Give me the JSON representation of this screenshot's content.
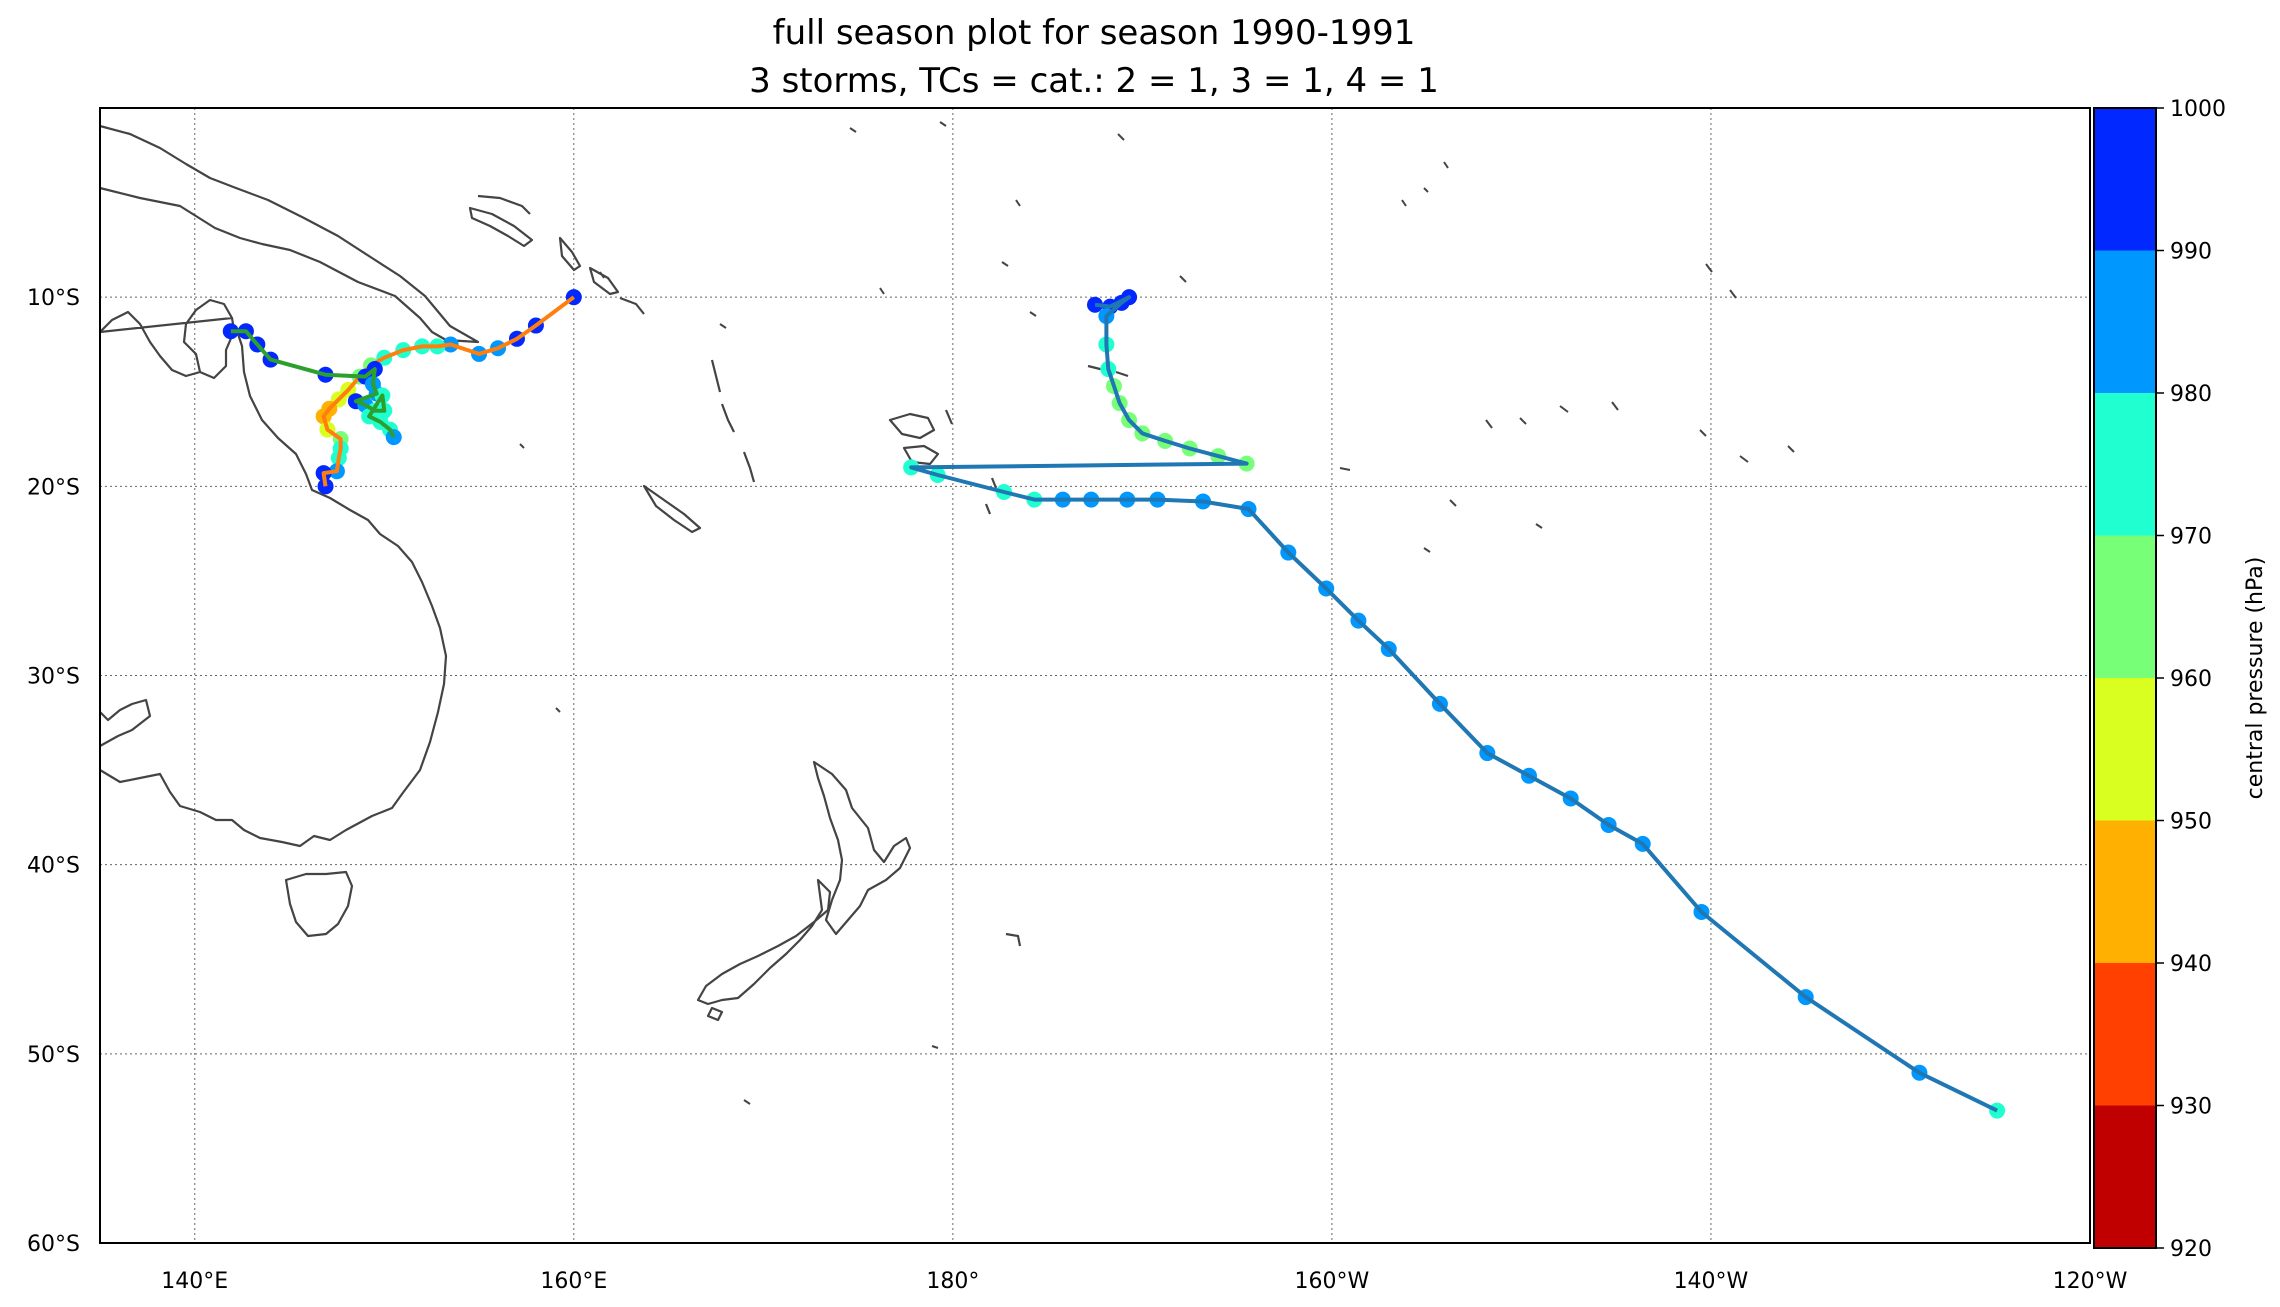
{
  "title_line1": "full season plot for season 1990-1991",
  "title_line2": "3 storms, TCs = cat.: 2 = 1, 3 = 1, 4 = 1",
  "map": {
    "lon_range": [
      135,
      240
    ],
    "lat_range": [
      -60,
      0
    ],
    "lon_ticks": [
      {
        "lon": 140,
        "label": "140°E"
      },
      {
        "lon": 160,
        "label": "160°E"
      },
      {
        "lon": 180,
        "label": "180°"
      },
      {
        "lon": 200,
        "label": "160°W"
      },
      {
        "lon": 220,
        "label": "140°W"
      },
      {
        "lon": 240,
        "label": "120°W"
      }
    ],
    "lat_ticks": [
      {
        "lat": -10,
        "label": "10°S"
      },
      {
        "lat": -20,
        "label": "20°S"
      },
      {
        "lat": -30,
        "label": "30°S"
      },
      {
        "lat": -40,
        "label": "40°S"
      },
      {
        "lat": -50,
        "label": "50°S"
      },
      {
        "lat": -60,
        "label": "60°S"
      }
    ],
    "gridlines": true
  },
  "colorbar": {
    "label": "central pressure (hPa)",
    "levels": [
      920,
      930,
      940,
      950,
      960,
      970,
      980,
      990,
      1000
    ],
    "colors": [
      "#c00000",
      "#ff4000",
      "#ffb000",
      "#d8ff20",
      "#78ff78",
      "#20ffd0",
      "#0098ff",
      "#0028ff"
    ]
  },
  "chart_data": {
    "type": "scatter",
    "series": [
      {
        "line_color": "#1f77b4",
        "points": [
          {
            "lon": 187.5,
            "lat": -10.4,
            "p": 995
          },
          {
            "lon": 188.3,
            "lat": -10.5,
            "p": 995
          },
          {
            "lon": 189.3,
            "lat": -10.0,
            "p": 995
          },
          {
            "lon": 188.9,
            "lat": -10.3,
            "p": 995
          },
          {
            "lon": 188.1,
            "lat": -11.0,
            "p": 988
          },
          {
            "lon": 188.1,
            "lat": -12.5,
            "p": 978
          },
          {
            "lon": 188.2,
            "lat": -13.8,
            "p": 972
          },
          {
            "lon": 188.5,
            "lat": -14.7,
            "p": 968
          },
          {
            "lon": 188.8,
            "lat": -15.6,
            "p": 964
          },
          {
            "lon": 189.3,
            "lat": -16.5,
            "p": 962
          },
          {
            "lon": 190.0,
            "lat": -17.2,
            "p": 960
          },
          {
            "lon": 191.2,
            "lat": -17.6,
            "p": 962
          },
          {
            "lon": 192.5,
            "lat": -18.0,
            "p": 964
          },
          {
            "lon": 194.0,
            "lat": -18.4,
            "p": 966
          },
          {
            "lon": 195.5,
            "lat": -18.8,
            "p": 968
          },
          {
            "lon": 177.8,
            "lat": -19.0,
            "p": 970
          },
          {
            "lon": 179.2,
            "lat": -19.4,
            "p": 972
          },
          {
            "lon": 182.7,
            "lat": -20.3,
            "p": 975
          },
          {
            "lon": 184.3,
            "lat": -20.7,
            "p": 978
          },
          {
            "lon": 185.8,
            "lat": -20.7,
            "p": 982
          },
          {
            "lon": 187.3,
            "lat": -20.7,
            "p": 984
          },
          {
            "lon": 189.2,
            "lat": -20.7,
            "p": 986
          },
          {
            "lon": 190.8,
            "lat": -20.7,
            "p": 986
          },
          {
            "lon": 193.2,
            "lat": -20.8,
            "p": 986
          },
          {
            "lon": 195.6,
            "lat": -21.2,
            "p": 987
          },
          {
            "lon": 197.7,
            "lat": -23.5,
            "p": 988
          },
          {
            "lon": 199.7,
            "lat": -25.4,
            "p": 988
          },
          {
            "lon": 201.4,
            "lat": -27.1,
            "p": 988
          },
          {
            "lon": 203.0,
            "lat": -28.6,
            "p": 988
          },
          {
            "lon": 205.7,
            "lat": -31.5,
            "p": 988
          },
          {
            "lon": 208.2,
            "lat": -34.1,
            "p": 988
          },
          {
            "lon": 210.4,
            "lat": -35.3,
            "p": 988
          },
          {
            "lon": 212.6,
            "lat": -36.5,
            "p": 987
          },
          {
            "lon": 214.6,
            "lat": -37.9,
            "p": 987
          },
          {
            "lon": 216.4,
            "lat": -38.9,
            "p": 987
          },
          {
            "lon": 219.5,
            "lat": -42.5,
            "p": 986
          },
          {
            "lon": 225.0,
            "lat": -47.0,
            "p": 985
          },
          {
            "lon": 231.0,
            "lat": -51.0,
            "p": 985
          },
          {
            "lon": 235.1,
            "lat": -53.0,
            "p": 978
          }
        ]
      },
      {
        "line_color": "#ff7f0e",
        "points": [
          {
            "lon": 160.0,
            "lat": -10.0,
            "p": 995
          },
          {
            "lon": 158.0,
            "lat": -11.5,
            "p": 992
          },
          {
            "lon": 157.0,
            "lat": -12.2,
            "p": 990
          },
          {
            "lon": 156.0,
            "lat": -12.7,
            "p": 988
          },
          {
            "lon": 155.0,
            "lat": -13.0,
            "p": 985
          },
          {
            "lon": 153.5,
            "lat": -12.5,
            "p": 982
          },
          {
            "lon": 152.8,
            "lat": -12.6,
            "p": 978
          },
          {
            "lon": 152.0,
            "lat": -12.6,
            "p": 975
          },
          {
            "lon": 151.0,
            "lat": -12.8,
            "p": 972
          },
          {
            "lon": 150.0,
            "lat": -13.2,
            "p": 970
          },
          {
            "lon": 149.3,
            "lat": -13.6,
            "p": 968
          },
          {
            "lon": 148.7,
            "lat": -14.2,
            "p": 965
          },
          {
            "lon": 148.1,
            "lat": -14.9,
            "p": 958
          },
          {
            "lon": 147.6,
            "lat": -15.4,
            "p": 950
          },
          {
            "lon": 147.1,
            "lat": -15.9,
            "p": 945
          },
          {
            "lon": 146.8,
            "lat": -16.3,
            "p": 945
          },
          {
            "lon": 147.0,
            "lat": -17.0,
            "p": 952
          },
          {
            "lon": 147.7,
            "lat": -17.5,
            "p": 962
          },
          {
            "lon": 147.7,
            "lat": -18.0,
            "p": 972
          },
          {
            "lon": 147.6,
            "lat": -18.5,
            "p": 978
          },
          {
            "lon": 147.5,
            "lat": -19.2,
            "p": 980
          },
          {
            "lon": 146.8,
            "lat": -19.3,
            "p": 990
          },
          {
            "lon": 146.9,
            "lat": -20.0,
            "p": 995
          }
        ]
      },
      {
        "line_color": "#2ca02c",
        "points": [
          {
            "lon": 141.9,
            "lat": -11.8,
            "p": 995
          },
          {
            "lon": 142.7,
            "lat": -11.8,
            "p": 994
          },
          {
            "lon": 143.3,
            "lat": -12.5,
            "p": 993
          },
          {
            "lon": 144.0,
            "lat": -13.3,
            "p": 992
          },
          {
            "lon": 146.9,
            "lat": -14.1,
            "p": 992
          },
          {
            "lon": 149.0,
            "lat": -14.2,
            "p": 990
          },
          {
            "lon": 149.5,
            "lat": -13.8,
            "p": 992
          },
          {
            "lon": 149.4,
            "lat": -14.6,
            "p": 985
          },
          {
            "lon": 149.6,
            "lat": -15.1,
            "p": 980
          },
          {
            "lon": 148.5,
            "lat": -15.5,
            "p": 995
          },
          {
            "lon": 149.0,
            "lat": -15.7,
            "p": 980
          },
          {
            "lon": 149.5,
            "lat": -16.0,
            "p": 976
          },
          {
            "lon": 150.0,
            "lat": -16.0,
            "p": 974
          },
          {
            "lon": 149.9,
            "lat": -15.2,
            "p": 978
          },
          {
            "lon": 149.2,
            "lat": -16.3,
            "p": 974
          },
          {
            "lon": 149.8,
            "lat": -16.6,
            "p": 976
          },
          {
            "lon": 150.3,
            "lat": -17.0,
            "p": 978
          },
          {
            "lon": 150.5,
            "lat": -17.4,
            "p": 980
          }
        ]
      }
    ]
  }
}
